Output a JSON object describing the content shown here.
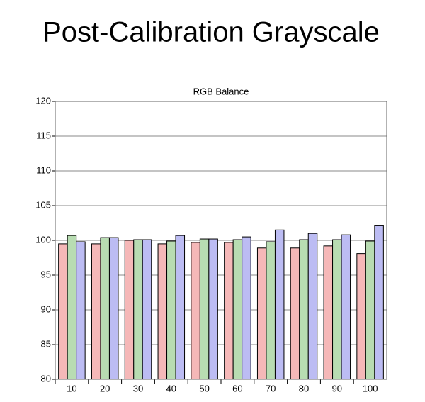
{
  "chart_data": {
    "type": "bar",
    "title": "Post-Calibration Grayscale",
    "subtitle": "RGB Balance",
    "categories": [
      "10",
      "20",
      "30",
      "40",
      "50",
      "60",
      "70",
      "80",
      "90",
      "100"
    ],
    "series": [
      {
        "color": "#f5b8b8",
        "values": [
          99.5,
          99.5,
          100.0,
          99.5,
          99.7,
          99.7,
          98.9,
          98.9,
          99.2,
          98.1
        ]
      },
      {
        "color": "#b8dcb2",
        "values": [
          100.7,
          100.4,
          100.1,
          99.9,
          100.2,
          100.1,
          99.8,
          100.1,
          100.1,
          99.9
        ]
      },
      {
        "color": "#bcbcf3",
        "values": [
          99.8,
          100.4,
          100.1,
          100.7,
          100.2,
          100.5,
          101.5,
          101.0,
          100.8,
          102.1
        ]
      }
    ],
    "ylim": [
      80,
      120
    ],
    "yticks": [
      80,
      85,
      90,
      95,
      100,
      105,
      110,
      115,
      120
    ],
    "grid": true
  }
}
